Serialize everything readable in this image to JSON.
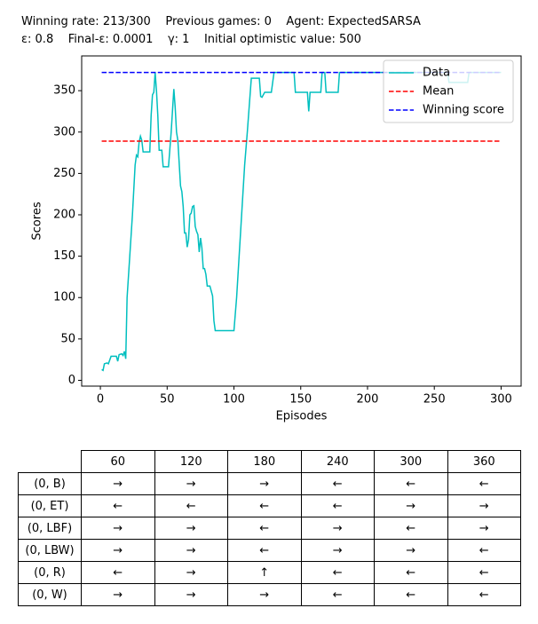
{
  "header": {
    "lines": [
      "Winning rate: 213/300    Previous games: 0    Agent: ExpectedSARSA",
      "ε: 0.8    Final-ε: 0.0001    γ: 1    Initial optimistic value: 500"
    ]
  },
  "chart_data": {
    "type": "line",
    "xlabel": "Episodes",
    "ylabel": "Scores",
    "xlim": [
      -14,
      315
    ],
    "ylim": [
      -7,
      392
    ],
    "xticks": [
      0,
      50,
      100,
      150,
      200,
      250,
      300
    ],
    "yticks": [
      0,
      50,
      100,
      150,
      200,
      250,
      300,
      350
    ],
    "legend": "upper right",
    "series": [
      {
        "name": "Data",
        "color": "#00bfbf",
        "dash": false,
        "x": [
          1,
          2,
          3,
          5,
          6,
          8,
          12,
          13,
          14,
          16,
          17,
          18,
          19,
          20,
          22,
          24,
          26,
          27,
          28,
          29,
          30,
          31,
          32,
          37,
          38,
          39,
          40,
          41,
          42,
          43,
          44,
          46,
          47,
          51,
          53,
          55,
          56,
          57,
          58,
          60,
          61,
          62,
          63,
          64,
          65,
          66,
          67,
          68,
          69,
          70,
          71,
          72,
          73,
          74,
          75,
          76,
          77,
          78,
          79,
          80,
          82,
          83,
          84,
          85,
          86,
          100,
          102,
          105,
          108,
          110,
          113,
          119,
          120,
          121,
          123,
          128,
          130,
          145,
          146,
          155,
          156,
          157,
          165,
          166,
          168,
          169,
          178,
          179,
          260,
          261,
          275,
          276,
          300
        ],
        "values": [
          13,
          12,
          20,
          21,
          20,
          29,
          29,
          23,
          31,
          32,
          30,
          35,
          26,
          100,
          150,
          200,
          260,
          272,
          270,
          288,
          295,
          290,
          276,
          276,
          320,
          345,
          348,
          372,
          350,
          320,
          278,
          278,
          258,
          258,
          300,
          352,
          330,
          300,
          290,
          235,
          228,
          210,
          178,
          178,
          161,
          170,
          200,
          202,
          210,
          211,
          186,
          180,
          176,
          155,
          172,
          160,
          135,
          135,
          128,
          114,
          114,
          108,
          102,
          72,
          60,
          60,
          100,
          180,
          260,
          300,
          365,
          365,
          343,
          342,
          348,
          348,
          372,
          372,
          348,
          348,
          325,
          348,
          348,
          372,
          372,
          348,
          348,
          372,
          372,
          360,
          360,
          372,
          372
        ]
      },
      {
        "name": "Mean",
        "color": "#ff0000",
        "dash": true,
        "x": [
          1,
          300
        ],
        "values": [
          289,
          289
        ]
      },
      {
        "name": "Winning score",
        "color": "#0000ff",
        "dash": true,
        "x": [
          1,
          300
        ],
        "values": [
          372,
          372
        ]
      }
    ]
  },
  "table": {
    "columns": [
      60,
      120,
      180,
      240,
      300,
      360
    ],
    "rows": [
      {
        "label": "(0, B)",
        "cells": [
          "→",
          "→",
          "→",
          "←",
          "←",
          "←"
        ]
      },
      {
        "label": "(0, ET)",
        "cells": [
          "←",
          "←",
          "←",
          "←",
          "→",
          "→"
        ]
      },
      {
        "label": "(0, LBF)",
        "cells": [
          "→",
          "→",
          "←",
          "→",
          "←",
          "→"
        ]
      },
      {
        "label": "(0, LBW)",
        "cells": [
          "→",
          "→",
          "←",
          "→",
          "→",
          "←"
        ]
      },
      {
        "label": "(0, R)",
        "cells": [
          "←",
          "→",
          "↑",
          "←",
          "←",
          "←"
        ]
      },
      {
        "label": "(0, W)",
        "cells": [
          "→",
          "→",
          "→",
          "←",
          "←",
          "←"
        ]
      }
    ]
  }
}
